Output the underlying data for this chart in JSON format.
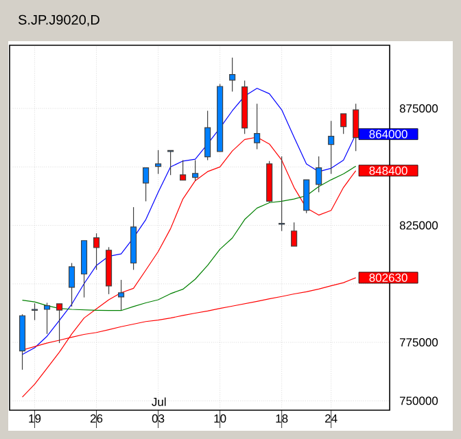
{
  "chart_data": {
    "type": "candlestick",
    "title": "S.JP.J9020,D",
    "categories": [
      null,
      "19",
      null,
      null,
      null,
      null,
      "26",
      null,
      null,
      null,
      null,
      "03",
      null,
      null,
      null,
      null,
      "10",
      null,
      null,
      null,
      null,
      "18",
      null,
      null,
      null,
      "24",
      null,
      null
    ],
    "ohlc": [
      [
        771300,
        787000,
        763300,
        786400
      ],
      [
        788700,
        791700,
        784500,
        789100
      ],
      [
        789100,
        791900,
        778600,
        790700
      ],
      [
        791500,
        791500,
        774700,
        788800
      ],
      [
        798500,
        808900,
        790300,
        807300
      ],
      [
        804200,
        818500,
        794200,
        818500
      ],
      [
        819700,
        821600,
        806000,
        815500
      ],
      [
        814400,
        815700,
        795600,
        799100
      ],
      [
        794400,
        801700,
        788800,
        796200
      ],
      [
        808900,
        832800,
        806000,
        824300
      ],
      [
        843100,
        849600,
        835300,
        849600
      ],
      [
        850200,
        857200,
        847000,
        851300
      ],
      [
        856600,
        857000,
        846500,
        857000
      ],
      [
        846600,
        852900,
        844300,
        844300
      ],
      [
        845500,
        852900,
        844100,
        847200
      ],
      [
        854300,
        874000,
        852900,
        866800
      ],
      [
        856600,
        885400,
        856600,
        884400
      ],
      [
        887100,
        896700,
        882200,
        889500
      ],
      [
        884200,
        886900,
        864100,
        866600
      ],
      [
        860300,
        877000,
        857600,
        864300
      ],
      [
        851300,
        852500,
        834900,
        835300
      ],
      [
        825500,
        854500,
        822600,
        825900
      ],
      [
        822600,
        826300,
        816100,
        816100
      ],
      [
        831400,
        844500,
        830200,
        844500
      ],
      [
        842500,
        854500,
        839200,
        849600
      ],
      [
        859600,
        869700,
        847000,
        863100
      ],
      [
        872700,
        872700,
        864100,
        867200
      ],
      [
        874400,
        877000,
        856800,
        862500
      ]
    ],
    "colors": [
      "#0080ff",
      "#0080ff",
      "#0080ff",
      "#ff0000",
      "#0080ff",
      "#0080ff",
      "#ff0000",
      "#ff0000",
      "#0080ff",
      "#0080ff",
      "#0080ff",
      "#0080ff",
      "#0080ff",
      "#ff0000",
      "#0080ff",
      "#0080ff",
      "#0080ff",
      "#0080ff",
      "#ff0000",
      "#0080ff",
      "#ff0000",
      "#0080ff",
      "#ff0000",
      "#0080ff",
      "#0080ff",
      "#0080ff",
      "#ff0000",
      "#ff0000"
    ],
    "series": [
      {
        "type": "line",
        "color": "#0000ff",
        "values": [
          769800,
          772700,
          777600,
          784400,
          791300,
          800100,
          807900,
          811800,
          812800,
          819700,
          827500,
          839200,
          850000,
          852500,
          853300,
          859800,
          866600,
          874000,
          880300,
          883600,
          881300,
          874400,
          862700,
          851300,
          848000,
          849400,
          852900,
          864000
        ],
        "value_labels": [
          null,
          null,
          null,
          null,
          null,
          null,
          null,
          null,
          null,
          null,
          null,
          null,
          null,
          null,
          null,
          null,
          null,
          null,
          null,
          null,
          null,
          null,
          null,
          null,
          null,
          null,
          null,
          "864000"
        ]
      },
      {
        "type": "line",
        "color": "#ff0000",
        "values": [
          751600,
          757100,
          763900,
          770800,
          778600,
          785400,
          789300,
          793200,
          796200,
          798100,
          805900,
          813800,
          823600,
          836300,
          844100,
          848000,
          850000,
          856800,
          861700,
          862700,
          859800,
          852900,
          841200,
          832400,
          829400,
          831400,
          841200,
          848400
        ],
        "value_labels": [
          null,
          null,
          null,
          null,
          null,
          null,
          null,
          null,
          null,
          null,
          null,
          null,
          null,
          null,
          null,
          null,
          null,
          null,
          null,
          null,
          null,
          null,
          null,
          null,
          null,
          null,
          null,
          "848400"
        ]
      },
      {
        "type": "line",
        "color": "#008000",
        "values": [
          793000,
          792300,
          790700,
          789500,
          789100,
          788900,
          788700,
          788600,
          788600,
          790300,
          791900,
          793200,
          795800,
          797700,
          802000,
          807900,
          814800,
          819600,
          827500,
          832400,
          834700,
          835300,
          836300,
          837700,
          841600,
          844500,
          847000,
          850300
        ]
      },
      {
        "type": "line",
        "color": "#ff0000",
        "values": [
          771700,
          773200,
          774700,
          775900,
          777200,
          778400,
          779200,
          780400,
          781700,
          782800,
          783900,
          784500,
          785400,
          786500,
          787500,
          788400,
          789500,
          790500,
          791500,
          792500,
          793600,
          794600,
          795700,
          796600,
          797800,
          799200,
          800500,
          802630
        ],
        "value_labels": [
          null,
          null,
          null,
          null,
          null,
          null,
          null,
          null,
          null,
          null,
          null,
          null,
          null,
          null,
          null,
          null,
          null,
          null,
          null,
          null,
          null,
          null,
          null,
          null,
          null,
          null,
          null,
          "802630"
        ]
      }
    ],
    "ylim": [
      746000,
      902000
    ],
    "yticks": [
      750000,
      775000,
      {
        "value": 800000,
        "label": null
      },
      825000,
      {
        "value": 850000,
        "label": null
      },
      875000
    ],
    "grid": true,
    "annotations": [
      "Jul"
    ]
  }
}
